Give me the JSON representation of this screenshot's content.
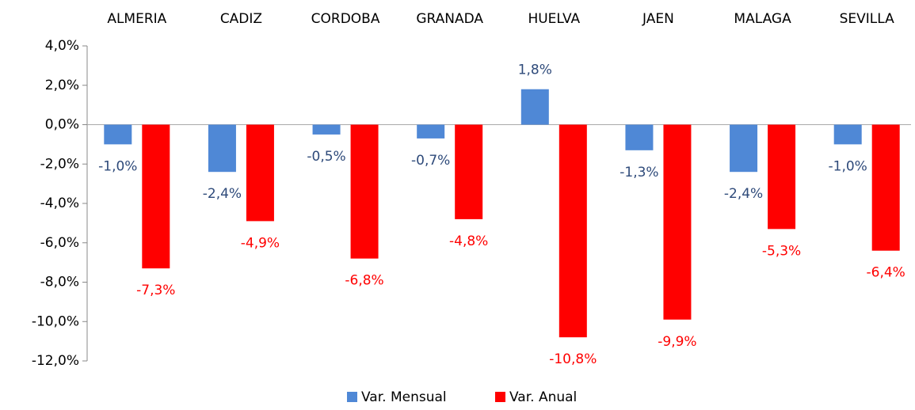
{
  "chart_data": {
    "type": "bar",
    "categories": [
      "ALMERIA",
      "CADIZ",
      "CORDOBA",
      "GRANADA",
      "HUELVA",
      "JAEN",
      "MALAGA",
      "SEVILLA"
    ],
    "series": [
      {
        "name": "Var. Mensual",
        "color": "#4f88d6",
        "label_color": "#2e4a7a",
        "values": [
          -1.0,
          -2.4,
          -0.5,
          -0.7,
          1.8,
          -1.3,
          -2.4,
          -1.0
        ],
        "value_labels": [
          "-1,0%",
          "-2,4%",
          "-0,5%",
          "-0,7%",
          "1,8%",
          "-1,3%",
          "-2,4%",
          "-1,0%"
        ]
      },
      {
        "name": "Var. Anual",
        "color": "#ff0000",
        "label_color": "#ff0000",
        "values": [
          -7.3,
          -4.9,
          -6.8,
          -4.8,
          -10.8,
          -9.9,
          -5.3,
          -6.4
        ],
        "value_labels": [
          "-7,3%",
          "-4,9%",
          "-6,8%",
          "-4,8%",
          "-10,8%",
          "-9,9%",
          "-5,3%",
          "-6,4%"
        ]
      }
    ],
    "ylim": [
      -12,
      4
    ],
    "yticks": [
      {
        "value": 4,
        "label": "4,0%"
      },
      {
        "value": 2,
        "label": "2,0%"
      },
      {
        "value": 0,
        "label": "0,0%"
      },
      {
        "value": -2,
        "label": "-2,0%"
      },
      {
        "value": -4,
        "label": "-4,0%"
      },
      {
        "value": -6,
        "label": "-6,0%"
      },
      {
        "value": -8,
        "label": "-8,0%"
      },
      {
        "value": -10,
        "label": "-10,0%"
      },
      {
        "value": -12,
        "label": "-12,0%"
      }
    ],
    "grid": false,
    "legend": "bottom"
  }
}
